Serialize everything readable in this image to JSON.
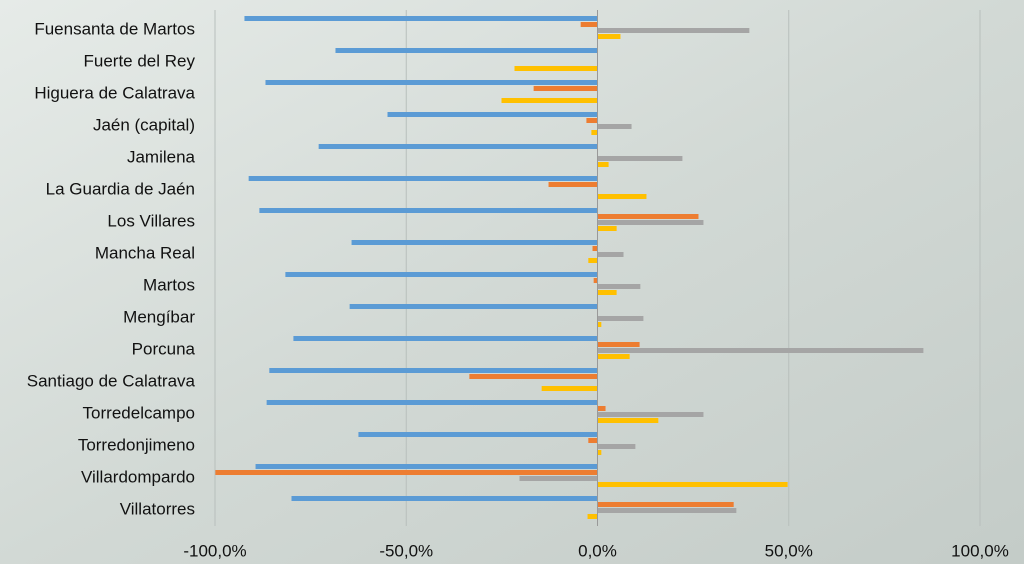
{
  "chart_data": {
    "type": "hbar",
    "categories": [
      "Fuensanta de Martos",
      "Fuerte del Rey",
      "Higuera de Calatrava",
      "Jaén (capital)",
      "Jamilena",
      "La Guardia de Jaén",
      "Los Villares",
      "Mancha Real",
      "Martos",
      "Mengíbar",
      "Porcuna",
      "Santiago de Calatrava",
      "Torredelcampo",
      "Torredonjimeno",
      "Villardompardo",
      "Villatorres"
    ],
    "series": [
      {
        "color": "#5b9bd5",
        "values": [
          -92.3,
          -68.5,
          -86.8,
          -54.9,
          -72.9,
          -91.2,
          -88.4,
          -64.3,
          -81.6,
          -64.8,
          -79.5,
          -85.8,
          -86.5,
          -62.5,
          -89.4,
          -80.0
        ]
      },
      {
        "color": "#ed7d31",
        "values": [
          -4.4,
          0,
          -16.7,
          -2.9,
          0,
          -12.8,
          26.4,
          -1.3,
          -1.0,
          0,
          11.0,
          -33.5,
          2.1,
          -2.4,
          -99.9,
          35.6
        ]
      },
      {
        "color": "#a5a5a5",
        "values": [
          39.7,
          0,
          0,
          8.9,
          22.2,
          0,
          27.7,
          6.8,
          11.2,
          12.0,
          85.2,
          0,
          27.7,
          9.9,
          -20.4,
          36.3
        ]
      },
      {
        "color": "#ffc000",
        "values": [
          6.0,
          -21.7,
          -25.1,
          -1.6,
          2.9,
          12.8,
          5.0,
          -2.4,
          5.0,
          1.0,
          8.4,
          -14.6,
          15.9,
          1.0,
          49.7,
          -2.6
        ]
      }
    ],
    "xlim": [
      -100,
      100
    ],
    "xticks": [
      {
        "value": -100,
        "label": "-100,0%"
      },
      {
        "value": -50,
        "label": "-50,0%"
      },
      {
        "value": 0,
        "label": "0,0%"
      },
      {
        "value": 50,
        "label": "50,0%"
      },
      {
        "value": 100,
        "label": "100,0%"
      }
    ],
    "grid": true
  }
}
